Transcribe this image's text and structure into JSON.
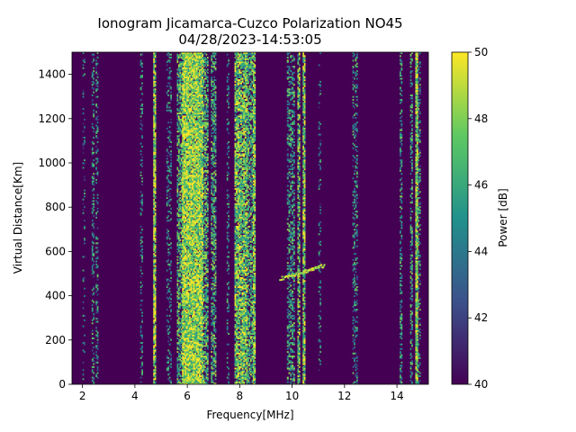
{
  "chart_data": {
    "type": "heatmap",
    "title": "Ionogram Jicamarca-Cuzco Polarization NO45",
    "subtitle": "04/28/2023-14:53:05",
    "xlabel": "Frequency[MHz]",
    "ylabel": "Virtual Distance[Km]",
    "colorbar_label": "Power [dB]",
    "xlim": [
      1.6,
      15.2
    ],
    "ylim": [
      0,
      1500
    ],
    "x_ticks": [
      2,
      4,
      6,
      8,
      10,
      12,
      14
    ],
    "y_ticks": [
      0,
      200,
      400,
      600,
      800,
      1000,
      1200,
      1400
    ],
    "color_range": [
      40,
      50
    ],
    "colorbar_ticks": [
      40,
      42,
      44,
      46,
      48,
      50
    ],
    "colormap": "viridis",
    "background_color": "#440154",
    "grid": false,
    "bands": [
      {
        "freq_start": 2.0,
        "freq_end": 2.1,
        "intensity": 0.2
      },
      {
        "freq_start": 2.35,
        "freq_end": 2.45,
        "intensity": 0.35
      },
      {
        "freq_start": 2.5,
        "freq_end": 2.6,
        "intensity": 0.3
      },
      {
        "freq_start": 4.2,
        "freq_end": 4.3,
        "intensity": 0.3
      },
      {
        "freq_start": 4.7,
        "freq_end": 4.8,
        "intensity": 0.9
      },
      {
        "freq_start": 5.2,
        "freq_end": 5.4,
        "intensity": 0.25
      },
      {
        "freq_start": 5.6,
        "freq_end": 5.8,
        "intensity": 0.6
      },
      {
        "freq_start": 5.8,
        "freq_end": 6.6,
        "intensity": 0.95
      },
      {
        "freq_start": 6.6,
        "freq_end": 6.8,
        "intensity": 0.6
      },
      {
        "freq_start": 6.9,
        "freq_end": 7.1,
        "intensity": 0.55
      },
      {
        "freq_start": 7.5,
        "freq_end": 7.6,
        "intensity": 0.3
      },
      {
        "freq_start": 7.8,
        "freq_end": 8.3,
        "intensity": 0.8
      },
      {
        "freq_start": 8.3,
        "freq_end": 8.5,
        "intensity": 0.6
      },
      {
        "freq_start": 8.5,
        "freq_end": 8.6,
        "intensity": 0.85
      },
      {
        "freq_start": 9.8,
        "freq_end": 10.1,
        "intensity": 0.45
      },
      {
        "freq_start": 10.2,
        "freq_end": 10.3,
        "intensity": 0.7
      },
      {
        "freq_start": 10.4,
        "freq_end": 10.5,
        "intensity": 0.85
      },
      {
        "freq_start": 11.0,
        "freq_end": 11.1,
        "intensity": 0.2
      },
      {
        "freq_start": 12.3,
        "freq_end": 12.5,
        "intensity": 0.35
      },
      {
        "freq_start": 14.1,
        "freq_end": 14.2,
        "intensity": 0.4
      },
      {
        "freq_start": 14.5,
        "freq_end": 14.6,
        "intensity": 0.45
      },
      {
        "freq_start": 14.7,
        "freq_end": 14.8,
        "intensity": 0.95
      },
      {
        "freq_start": 14.8,
        "freq_end": 14.9,
        "intensity": 0.4
      }
    ],
    "diagonal_trace": {
      "from": [
        9.5,
        480
      ],
      "to": [
        11.2,
        540
      ]
    }
  }
}
